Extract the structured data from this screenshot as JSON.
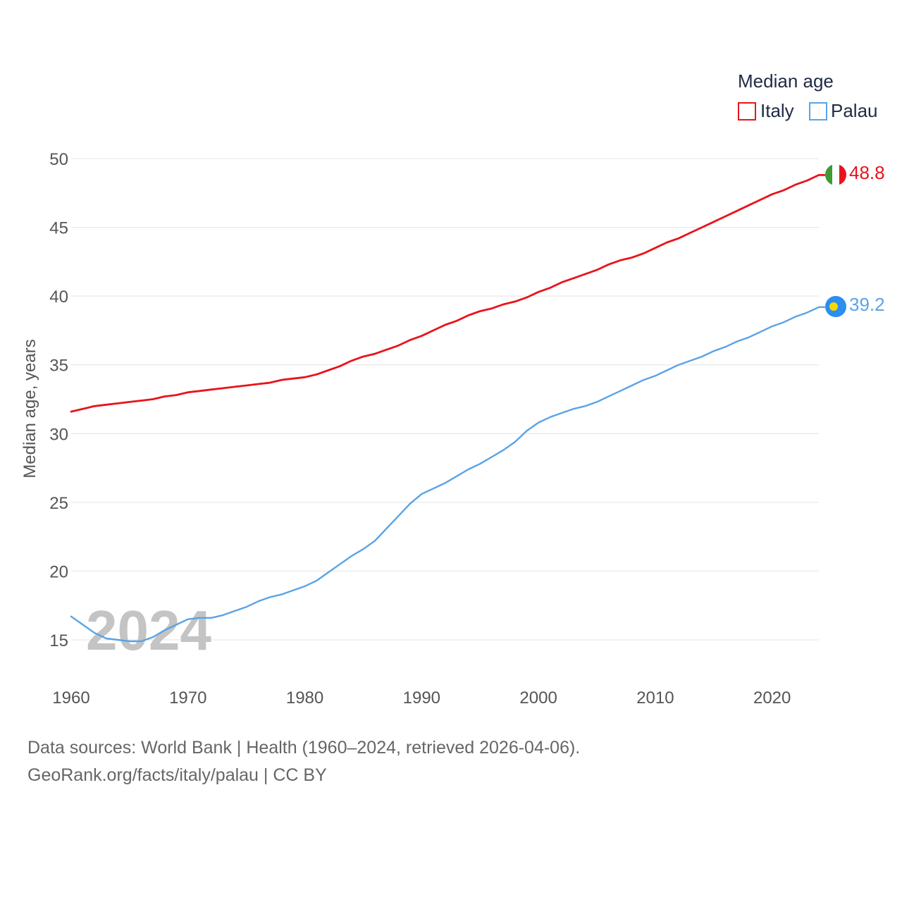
{
  "chart_data": {
    "type": "line",
    "title": "Median age",
    "xlabel": "",
    "ylabel": "Median age, years",
    "xlim": [
      1960,
      2024
    ],
    "ylim": [
      12.5,
      51
    ],
    "x_ticks": [
      1960,
      1970,
      1980,
      1990,
      2000,
      2010,
      2020
    ],
    "y_ticks": [
      15,
      20,
      25,
      30,
      35,
      40,
      45,
      50
    ],
    "grid": true,
    "legend_position": "top-right",
    "watermark_year": "2024",
    "x": [
      1960,
      1961,
      1962,
      1963,
      1964,
      1965,
      1966,
      1967,
      1968,
      1969,
      1970,
      1971,
      1972,
      1973,
      1974,
      1975,
      1976,
      1977,
      1978,
      1979,
      1980,
      1981,
      1982,
      1983,
      1984,
      1985,
      1986,
      1987,
      1988,
      1989,
      1990,
      1991,
      1992,
      1993,
      1994,
      1995,
      1996,
      1997,
      1998,
      1999,
      2000,
      2001,
      2002,
      2003,
      2004,
      2005,
      2006,
      2007,
      2008,
      2009,
      2010,
      2011,
      2012,
      2013,
      2014,
      2015,
      2016,
      2017,
      2018,
      2019,
      2020,
      2021,
      2022,
      2023,
      2024
    ],
    "series": [
      {
        "name": "Italy",
        "color": "#e8141b",
        "end_label": "48.8",
        "values": [
          31.6,
          31.8,
          32.0,
          32.1,
          32.2,
          32.3,
          32.4,
          32.5,
          32.7,
          32.8,
          33.0,
          33.1,
          33.2,
          33.3,
          33.4,
          33.5,
          33.6,
          33.7,
          33.9,
          34.0,
          34.1,
          34.3,
          34.6,
          34.9,
          35.3,
          35.6,
          35.8,
          36.1,
          36.4,
          36.8,
          37.1,
          37.5,
          37.9,
          38.2,
          38.6,
          38.9,
          39.1,
          39.4,
          39.6,
          39.9,
          40.3,
          40.6,
          41.0,
          41.3,
          41.6,
          41.9,
          42.3,
          42.6,
          42.8,
          43.1,
          43.5,
          43.9,
          44.2,
          44.6,
          45.0,
          45.4,
          45.8,
          46.2,
          46.6,
          47.0,
          47.4,
          47.7,
          48.1,
          48.4,
          48.8
        ]
      },
      {
        "name": "Palau",
        "color": "#5aa3e6",
        "end_label": "39.2",
        "values": [
          16.7,
          16.1,
          15.5,
          15.1,
          15.0,
          14.9,
          14.9,
          15.2,
          15.7,
          16.1,
          16.5,
          16.6,
          16.6,
          16.8,
          17.1,
          17.4,
          17.8,
          18.1,
          18.3,
          18.6,
          18.9,
          19.3,
          19.9,
          20.5,
          21.1,
          21.6,
          22.2,
          23.1,
          24.0,
          24.9,
          25.6,
          26.0,
          26.4,
          26.9,
          27.4,
          27.8,
          28.3,
          28.8,
          29.4,
          30.2,
          30.8,
          31.2,
          31.5,
          31.8,
          32.0,
          32.3,
          32.7,
          33.1,
          33.5,
          33.9,
          34.2,
          34.6,
          35.0,
          35.3,
          35.6,
          36.0,
          36.3,
          36.7,
          37.0,
          37.4,
          37.8,
          38.1,
          38.5,
          38.8,
          39.2
        ]
      }
    ]
  },
  "footer": {
    "sources": "Data sources: World Bank | Health (1960–2024, retrieved 2026-04-06).",
    "credit": "GeoRank.org/facts/italy/palau | CC BY"
  },
  "icons": {
    "italy": "italy-flag-icon",
    "palau": "palau-flag-icon"
  }
}
